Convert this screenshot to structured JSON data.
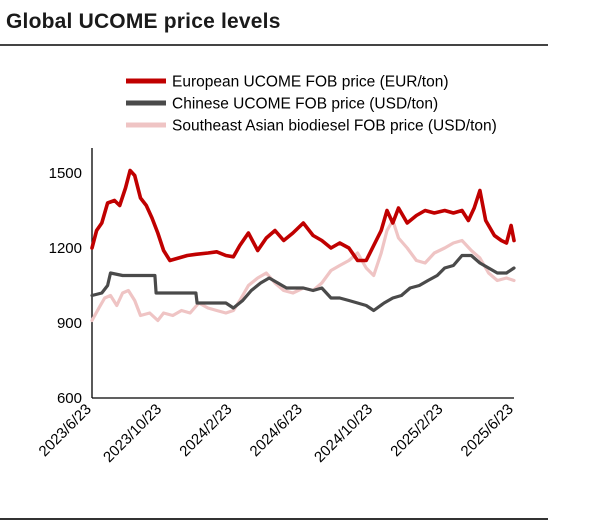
{
  "page": {
    "title": "Global UCOME price levels"
  },
  "chart_data": {
    "type": "line",
    "title": "Global UCOME price levels",
    "xlabel": "",
    "ylabel": "",
    "x_ticks": [
      "2023/6/23",
      "2023/10/23",
      "2024/2/23",
      "2024/6/23",
      "2024/10/23",
      "2025/2/23",
      "2025/6/23"
    ],
    "y_ticks": [
      600,
      900,
      1200,
      1500
    ],
    "ylim": [
      600,
      1600
    ],
    "xlim": [
      "2023-06-23",
      "2025-06-23"
    ],
    "legend_position": "top",
    "grid": false,
    "series": [
      {
        "name": "European UCOME FOB price (EUR/ton)",
        "color": "#c00000",
        "points": [
          [
            "2023-06-23",
            1200
          ],
          [
            "2023-07-01",
            1270
          ],
          [
            "2023-07-10",
            1300
          ],
          [
            "2023-07-20",
            1380
          ],
          [
            "2023-08-01",
            1390
          ],
          [
            "2023-08-10",
            1370
          ],
          [
            "2023-08-20",
            1440
          ],
          [
            "2023-08-28",
            1510
          ],
          [
            "2023-09-05",
            1490
          ],
          [
            "2023-09-15",
            1400
          ],
          [
            "2023-09-25",
            1370
          ],
          [
            "2023-10-05",
            1320
          ],
          [
            "2023-10-15",
            1260
          ],
          [
            "2023-10-25",
            1190
          ],
          [
            "2023-11-05",
            1150
          ],
          [
            "2023-11-20",
            1160
          ],
          [
            "2023-12-05",
            1170
          ],
          [
            "2023-12-20",
            1175
          ],
          [
            "2024-01-10",
            1180
          ],
          [
            "2024-01-25",
            1185
          ],
          [
            "2024-02-10",
            1170
          ],
          [
            "2024-02-23",
            1165
          ],
          [
            "2024-03-05",
            1210
          ],
          [
            "2024-03-20",
            1260
          ],
          [
            "2024-04-05",
            1190
          ],
          [
            "2024-04-20",
            1240
          ],
          [
            "2024-05-05",
            1270
          ],
          [
            "2024-05-20",
            1230
          ],
          [
            "2024-06-05",
            1260
          ],
          [
            "2024-06-23",
            1300
          ],
          [
            "2024-07-10",
            1250
          ],
          [
            "2024-07-25",
            1230
          ],
          [
            "2024-08-10",
            1200
          ],
          [
            "2024-08-25",
            1220
          ],
          [
            "2024-09-10",
            1200
          ],
          [
            "2024-09-25",
            1150
          ],
          [
            "2024-10-10",
            1150
          ],
          [
            "2024-10-23",
            1210
          ],
          [
            "2024-11-05",
            1270
          ],
          [
            "2024-11-15",
            1350
          ],
          [
            "2024-11-25",
            1300
          ],
          [
            "2024-12-05",
            1360
          ],
          [
            "2024-12-20",
            1300
          ],
          [
            "2025-01-05",
            1330
          ],
          [
            "2025-01-20",
            1350
          ],
          [
            "2025-02-05",
            1340
          ],
          [
            "2025-02-23",
            1350
          ],
          [
            "2025-03-10",
            1340
          ],
          [
            "2025-03-25",
            1350
          ],
          [
            "2025-04-05",
            1310
          ],
          [
            "2025-04-15",
            1360
          ],
          [
            "2025-04-25",
            1430
          ],
          [
            "2025-05-05",
            1310
          ],
          [
            "2025-05-20",
            1250
          ],
          [
            "2025-06-01",
            1230
          ],
          [
            "2025-06-10",
            1220
          ],
          [
            "2025-06-18",
            1290
          ],
          [
            "2025-06-23",
            1230
          ]
        ]
      },
      {
        "name": "Chinese UCOME FOB price (USD/ton)",
        "color": "#4a4a4a",
        "points": [
          [
            "2023-06-23",
            1010
          ],
          [
            "2023-07-10",
            1020
          ],
          [
            "2023-07-20",
            1050
          ],
          [
            "2023-07-25",
            1100
          ],
          [
            "2023-08-15",
            1090
          ],
          [
            "2023-09-15",
            1090
          ],
          [
            "2023-10-10",
            1090
          ],
          [
            "2023-10-12",
            1020
          ],
          [
            "2023-11-20",
            1020
          ],
          [
            "2023-12-20",
            1020
          ],
          [
            "2023-12-22",
            980
          ],
          [
            "2024-02-10",
            980
          ],
          [
            "2024-02-23",
            960
          ],
          [
            "2024-03-10",
            990
          ],
          [
            "2024-03-25",
            1030
          ],
          [
            "2024-04-10",
            1060
          ],
          [
            "2024-04-25",
            1080
          ],
          [
            "2024-05-10",
            1060
          ],
          [
            "2024-05-25",
            1040
          ],
          [
            "2024-06-23",
            1040
          ],
          [
            "2024-07-10",
            1030
          ],
          [
            "2024-07-25",
            1040
          ],
          [
            "2024-08-10",
            1000
          ],
          [
            "2024-08-25",
            1000
          ],
          [
            "2024-09-10",
            990
          ],
          [
            "2024-09-25",
            980
          ],
          [
            "2024-10-10",
            970
          ],
          [
            "2024-10-23",
            950
          ],
          [
            "2024-11-10",
            980
          ],
          [
            "2024-11-25",
            1000
          ],
          [
            "2024-12-10",
            1010
          ],
          [
            "2024-12-25",
            1040
          ],
          [
            "2025-01-10",
            1050
          ],
          [
            "2025-01-25",
            1070
          ],
          [
            "2025-02-10",
            1090
          ],
          [
            "2025-02-23",
            1120
          ],
          [
            "2025-03-10",
            1130
          ],
          [
            "2025-03-25",
            1170
          ],
          [
            "2025-04-10",
            1170
          ],
          [
            "2025-04-25",
            1140
          ],
          [
            "2025-05-10",
            1120
          ],
          [
            "2025-05-25",
            1100
          ],
          [
            "2025-06-10",
            1100
          ],
          [
            "2025-06-23",
            1120
          ]
        ]
      },
      {
        "name": "Southeast Asian biodiesel FOB price (USD/ton)",
        "color": "#efc4c4",
        "points": [
          [
            "2023-06-23",
            910
          ],
          [
            "2023-07-05",
            960
          ],
          [
            "2023-07-15",
            1000
          ],
          [
            "2023-07-25",
            1010
          ],
          [
            "2023-08-05",
            970
          ],
          [
            "2023-08-15",
            1020
          ],
          [
            "2023-08-25",
            1030
          ],
          [
            "2023-09-05",
            990
          ],
          [
            "2023-09-15",
            930
          ],
          [
            "2023-10-01",
            940
          ],
          [
            "2023-10-15",
            910
          ],
          [
            "2023-10-25",
            940
          ],
          [
            "2023-11-10",
            930
          ],
          [
            "2023-11-25",
            950
          ],
          [
            "2023-12-10",
            940
          ],
          [
            "2023-12-25",
            980
          ],
          [
            "2024-01-10",
            960
          ],
          [
            "2024-01-25",
            950
          ],
          [
            "2024-02-10",
            940
          ],
          [
            "2024-02-23",
            950
          ],
          [
            "2024-03-05",
            990
          ],
          [
            "2024-03-20",
            1050
          ],
          [
            "2024-04-05",
            1080
          ],
          [
            "2024-04-20",
            1100
          ],
          [
            "2024-05-05",
            1060
          ],
          [
            "2024-05-20",
            1030
          ],
          [
            "2024-06-05",
            1020
          ],
          [
            "2024-06-23",
            1040
          ],
          [
            "2024-07-10",
            1030
          ],
          [
            "2024-07-25",
            1060
          ],
          [
            "2024-08-10",
            1110
          ],
          [
            "2024-08-25",
            1130
          ],
          [
            "2024-09-10",
            1150
          ],
          [
            "2024-09-25",
            1180
          ],
          [
            "2024-10-10",
            1120
          ],
          [
            "2024-10-23",
            1090
          ],
          [
            "2024-11-05",
            1180
          ],
          [
            "2024-11-15",
            1270
          ],
          [
            "2024-11-25",
            1310
          ],
          [
            "2024-12-05",
            1240
          ],
          [
            "2024-12-20",
            1200
          ],
          [
            "2025-01-05",
            1150
          ],
          [
            "2025-01-20",
            1140
          ],
          [
            "2025-02-05",
            1180
          ],
          [
            "2025-02-23",
            1200
          ],
          [
            "2025-03-10",
            1220
          ],
          [
            "2025-03-25",
            1230
          ],
          [
            "2025-04-10",
            1190
          ],
          [
            "2025-04-25",
            1160
          ],
          [
            "2025-05-10",
            1100
          ],
          [
            "2025-05-25",
            1070
          ],
          [
            "2025-06-10",
            1080
          ],
          [
            "2025-06-23",
            1070
          ]
        ]
      }
    ]
  }
}
